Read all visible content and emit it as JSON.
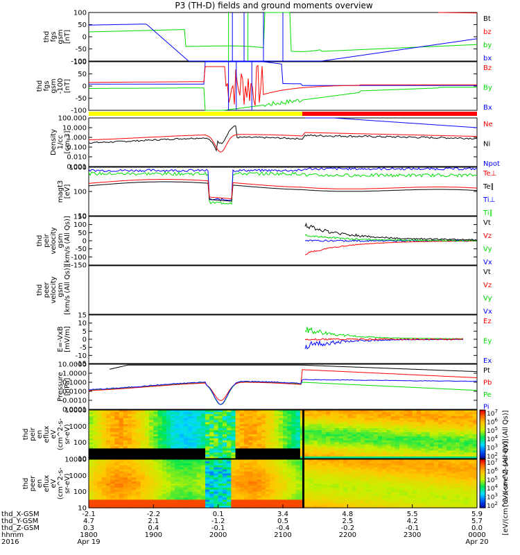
{
  "title": "P3 (TH-D) fields and ground moments overview",
  "colors": {
    "black": "#000000",
    "red": "#ff0000",
    "green": "#00dd00",
    "blue": "#0000ff",
    "yellow": "#ffff00"
  },
  "chart_data": [
    {
      "type": "line",
      "panel": "fgs-gsm",
      "ylabel": [
        "thd",
        "fgs",
        "gsm",
        "[nT]"
      ],
      "yticks": [
        "100",
        "50",
        "0",
        "-50",
        "-100"
      ],
      "legend": [
        {
          "name": "Bt",
          "color": "black"
        },
        {
          "name": "bz",
          "color": "red"
        },
        {
          "name": "by",
          "color": "green"
        },
        {
          "name": "bx",
          "color": "blue"
        }
      ]
    },
    {
      "type": "line",
      "panel": "fgs-gsm-zoom",
      "ylabel": [
        "thd",
        "fgs",
        "gsm",
        "-100",
        "[nT]"
      ],
      "yticks": [
        "100",
        "50",
        "0",
        "-50",
        "-100"
      ],
      "legend": [
        {
          "name": "Bz",
          "color": "red"
        },
        {
          "name": "By",
          "color": "green"
        },
        {
          "name": "Bx",
          "color": "blue"
        }
      ]
    },
    {
      "type": "line",
      "panel": "density",
      "ylabel": [
        "Density",
        "1/cc",
        "[cm-3]"
      ],
      "yticks": [
        "100.000",
        "10.000",
        "1.000",
        "0.100",
        "0.010",
        "0.001"
      ],
      "legend": [
        {
          "name": "Ne",
          "color": "red"
        },
        {
          "name": "Ni",
          "color": "black"
        },
        {
          "name": "Npot",
          "color": "blue"
        }
      ]
    },
    {
      "type": "line",
      "panel": "temperature",
      "ylabel": [
        "magt3",
        "[eV]"
      ],
      "yticks": [
        "1000",
        "100",
        "10"
      ],
      "legend": [
        {
          "name": "Te⊥",
          "color": "red"
        },
        {
          "name": "Te∥",
          "color": "black"
        },
        {
          "name": "Ti⊥",
          "color": "blue"
        },
        {
          "name": "Ti∥",
          "color": "green"
        }
      ]
    },
    {
      "type": "line",
      "panel": "peir-velocity",
      "ylabel": [
        "thd",
        "peir",
        "velocity",
        "gsm",
        "[km/s (All Qs)]"
      ],
      "yticks": [
        "150",
        "100",
        "50",
        "0",
        "-50",
        "-100",
        "-150"
      ],
      "legend": [
        {
          "name": "Vt",
          "color": "black"
        },
        {
          "name": "Vz",
          "color": "red"
        },
        {
          "name": "Vy",
          "color": "green"
        },
        {
          "name": "Vx",
          "color": "blue"
        }
      ]
    },
    {
      "type": "line",
      "panel": "peer-velocity",
      "ylabel": [
        "thd",
        "peer",
        "velocity",
        "gsm",
        "[km/s (All Qs)]"
      ],
      "yticks": [],
      "legend": [
        {
          "name": "Vt",
          "color": "black"
        },
        {
          "name": "Vz",
          "color": "red"
        },
        {
          "name": "Vy",
          "color": "green"
        },
        {
          "name": "Vx",
          "color": "blue"
        }
      ]
    },
    {
      "type": "line",
      "panel": "efield",
      "ylabel": [
        "E=-VxB",
        "[mV/m]"
      ],
      "yticks": [
        "15",
        "10",
        "5",
        "0",
        "-5",
        "-10",
        "-15"
      ],
      "legend": [
        {
          "name": "Ez",
          "color": "red"
        },
        {
          "name": "Ey",
          "color": "green"
        },
        {
          "name": "Ex",
          "color": "blue"
        }
      ]
    },
    {
      "type": "line",
      "panel": "pressure",
      "ylabel": [
        "Pressure",
        "[nPa]"
      ],
      "yticks": [
        "10.0000",
        "1.0000",
        "0.1000",
        "0.0100",
        "0.0010",
        "0.0001"
      ],
      "legend": [
        {
          "name": "Pt",
          "color": "black"
        },
        {
          "name": "Pb",
          "color": "red"
        },
        {
          "name": "Pe",
          "color": "green"
        },
        {
          "name": "Pi",
          "color": "blue"
        }
      ]
    },
    {
      "type": "heatmap",
      "panel": "peir-eflux",
      "ylabel": [
        "thd",
        "peir",
        "en",
        "eflux",
        "eV",
        "(cm^2-s-",
        "sr-eV)"
      ],
      "yticks": [
        "10000",
        "1000",
        "100",
        "10"
      ]
    },
    {
      "type": "heatmap",
      "panel": "peer-eflux",
      "ylabel": [
        "thd",
        "peer",
        "en",
        "eflux",
        "eV",
        "(cm^2-s-",
        "sr-eV)"
      ],
      "yticks": [
        "10000",
        "1000",
        "100",
        "10"
      ]
    }
  ],
  "colorbar": {
    "ticks": [
      "10^7",
      "10^6",
      "10^5",
      "10^4",
      "10^3",
      "10^2"
    ],
    "label": "[eV/(cm^2-s-sr-eV) (All Qs)]"
  },
  "xaxis": {
    "rows": [
      {
        "label": "thd_X-GSM",
        "values": [
          "-2.1",
          "-2.2",
          "0.1",
          "3.4",
          "4.8",
          "5.5",
          "5.9"
        ]
      },
      {
        "label": "thd_Y-GSM",
        "values": [
          "4.7",
          "2.1",
          "-1.2",
          "0.5",
          "2.5",
          "4.2",
          "5.7"
        ]
      },
      {
        "label": "thd_Z-GSM",
        "values": [
          "0.3",
          "0.4",
          "-0.1",
          "-0.4",
          "-0.2",
          "-0.1",
          "0.0"
        ]
      },
      {
        "label": "hhmm",
        "values": [
          "1800",
          "1900",
          "2000",
          "2100",
          "2200",
          "2300",
          "0000"
        ]
      }
    ],
    "year": "2016",
    "dates": [
      {
        "label": "Apr 19",
        "index": 0
      },
      {
        "label": "Apr 20",
        "index": 6
      }
    ]
  }
}
